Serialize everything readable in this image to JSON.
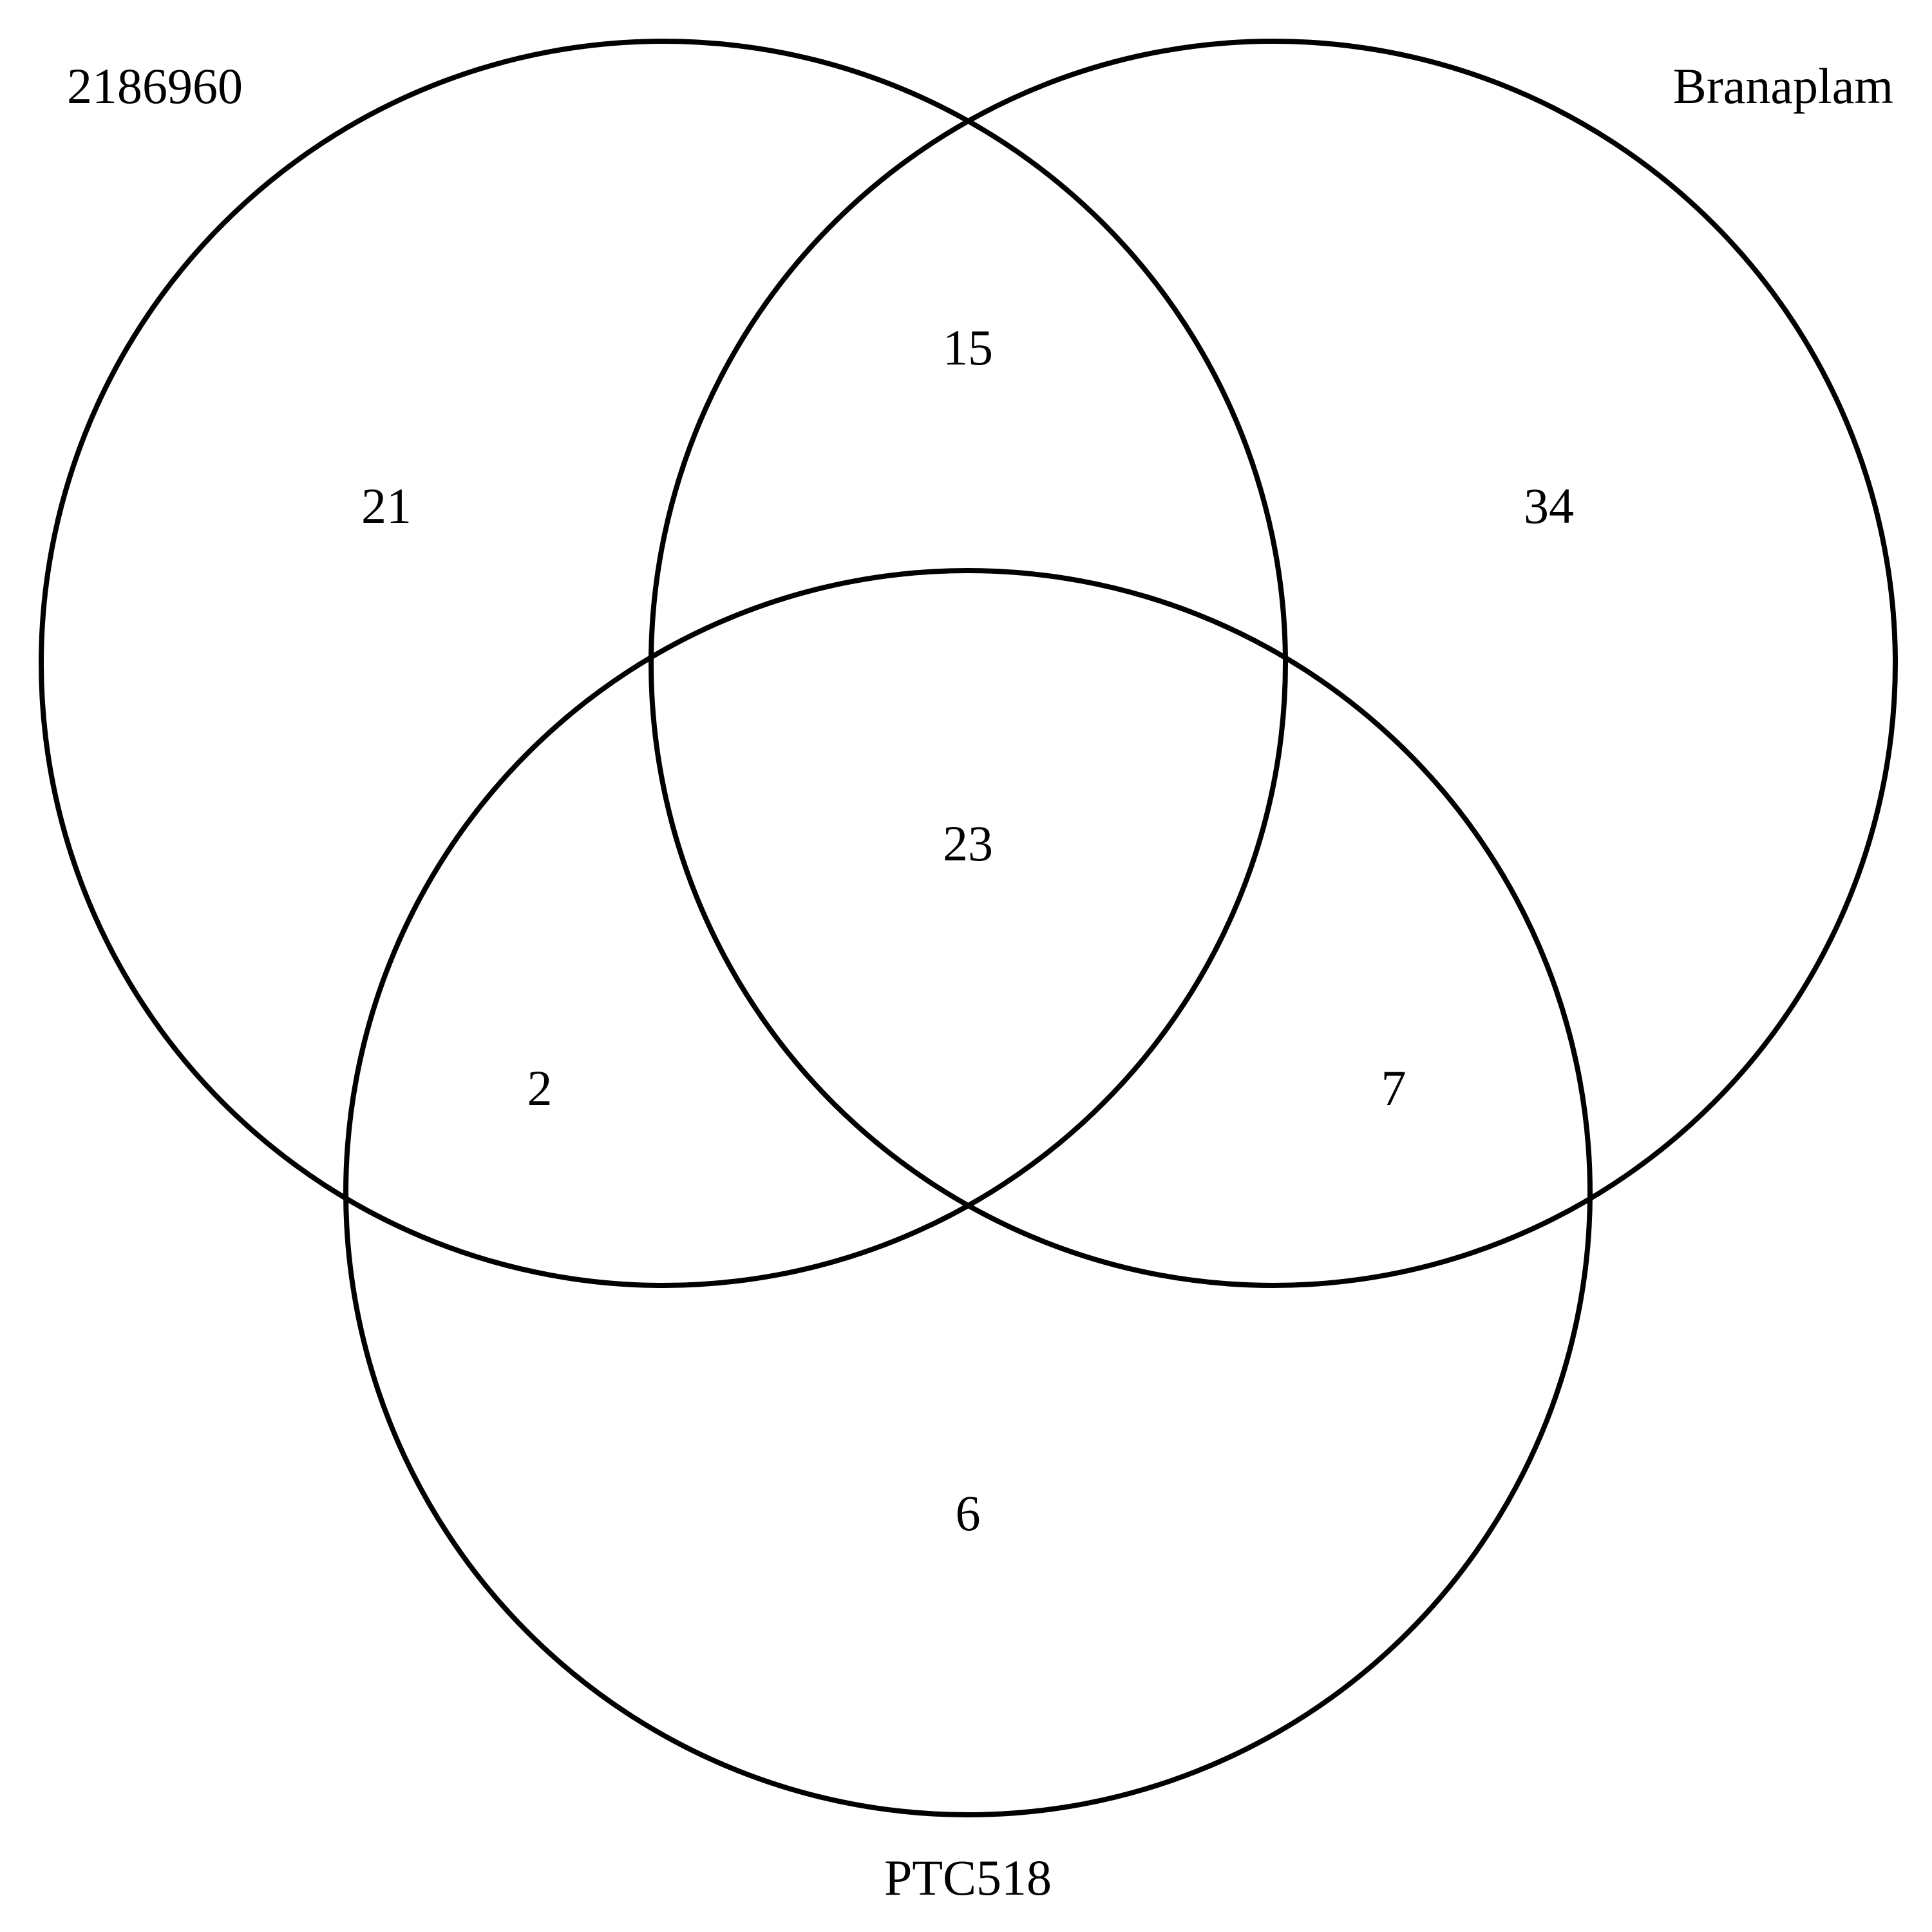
{
  "sets": {
    "a": {
      "label": "2186960"
    },
    "b": {
      "label": "Branaplam"
    },
    "c": {
      "label": "PTC518"
    }
  },
  "regions": {
    "a_only": 21,
    "b_only": 34,
    "c_only": 6,
    "ab_only": 15,
    "ac_only": 2,
    "bc_only": 7,
    "abc": 23
  },
  "style": {
    "stroke_color": "#000000",
    "background": "#ffffff"
  }
}
